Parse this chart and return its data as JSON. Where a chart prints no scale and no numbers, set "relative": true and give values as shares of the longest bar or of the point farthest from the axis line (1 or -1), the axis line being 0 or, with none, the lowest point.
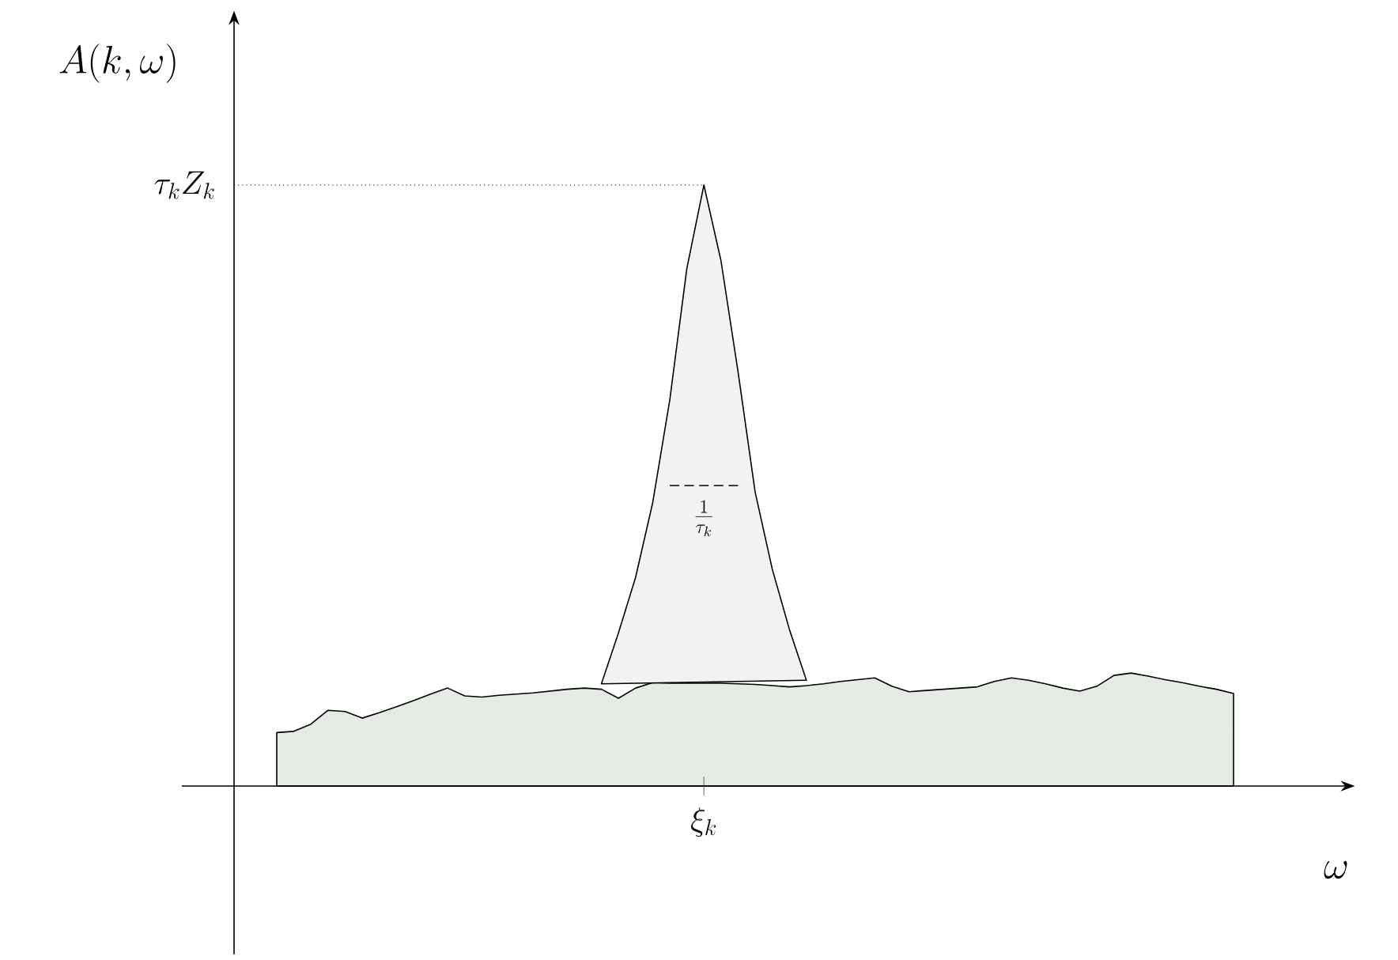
{
  "chart_data": {
    "type": "area",
    "relative": true,
    "categories": [
      null,
      null,
      null,
      null,
      null,
      null,
      null,
      null,
      null,
      null,
      null,
      null,
      null,
      null,
      null,
      null,
      null,
      null,
      null,
      null,
      null,
      null,
      null,
      null,
      null,
      null,
      null,
      null,
      null,
      null,
      null,
      null,
      null,
      null,
      null,
      null,
      null,
      null,
      null,
      null,
      null,
      null,
      null,
      null,
      null,
      null,
      null,
      null,
      null,
      null,
      null,
      null,
      null,
      null,
      null,
      null,
      null
    ],
    "series": [
      {
        "color": "#e4ebe2",
        "values": [
          0.089,
          0.091,
          0.103,
          0.126,
          0.124,
          0.113,
          0.122,
          0.132,
          0.142,
          0.153,
          0.163,
          0.15,
          0.148,
          0.151,
          0.153,
          0.155,
          0.158,
          0.161,
          0.163,
          0.161,
          0.146,
          0.163,
          0.172,
          0.171,
          0.171,
          0.171,
          0.171,
          0.17,
          0.169,
          0.167,
          0.165,
          0.167,
          0.17,
          0.174,
          0.177,
          0.18,
          0.166,
          0.157,
          0.159,
          0.161,
          0.163,
          0.165,
          0.174,
          0.18,
          0.176,
          0.17,
          0.163,
          0.158,
          0.166,
          0.184,
          0.188,
          0.183,
          0.177,
          0.172,
          0.166,
          0.161,
          0.154
        ]
      },
      {
        "color": "#f2f2f5",
        "values": [
          null,
          null,
          null,
          null,
          null,
          null,
          null,
          null,
          null,
          null,
          null,
          null,
          null,
          null,
          null,
          null,
          null,
          null,
          null,
          0.17,
          0.255,
          0.347,
          0.471,
          0.642,
          0.861,
          1.0,
          0.874,
          0.689,
          0.489,
          0.361,
          0.261,
          0.176,
          null,
          null,
          null,
          null,
          null,
          null,
          null,
          null,
          null,
          null,
          null,
          null,
          null,
          null,
          null,
          null,
          null,
          null,
          null,
          null,
          null,
          null,
          null,
          null,
          null
        ]
      },
      {
        "type": "line",
        "line_style": "dashed",
        "color": "#000000",
        "values": [
          null,
          null,
          null,
          null,
          null,
          null,
          null,
          null,
          null,
          null,
          null,
          null,
          null,
          null,
          null,
          null,
          null,
          null,
          null,
          null,
          null,
          null,
          null,
          0.5,
          null,
          null,
          null,
          0.5,
          null,
          null,
          null,
          null,
          null,
          null,
          null,
          null,
          null,
          null,
          null,
          null,
          null,
          null,
          null,
          null,
          null,
          null,
          null,
          null,
          null,
          null,
          null,
          null,
          null,
          null,
          null,
          null,
          null
        ]
      }
    ],
    "annotations": [
      "A(k,\\omega)",
      "\\omega",
      "\\tau_k Z_k",
      "\\frac{1}{\\tau_k}",
      "\\xi_k"
    ]
  }
}
